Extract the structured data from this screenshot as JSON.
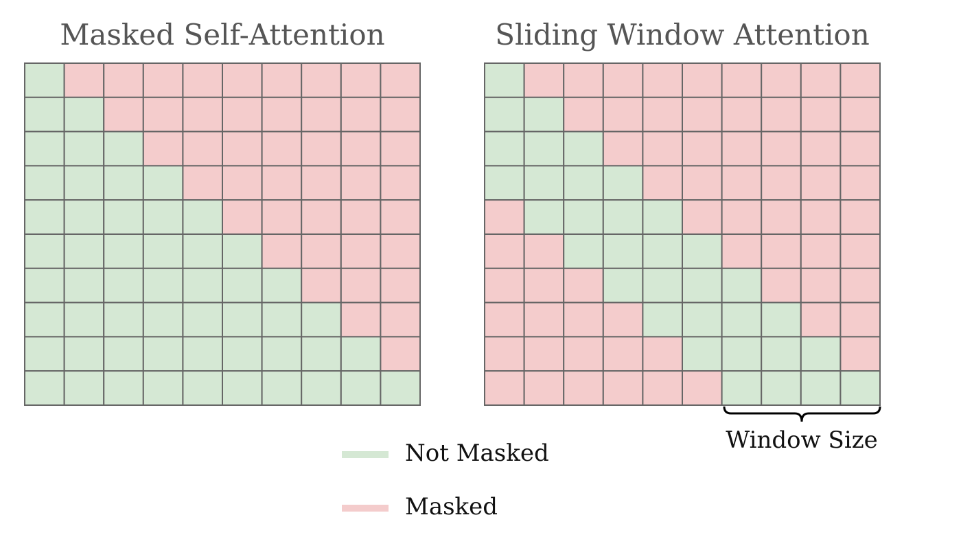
{
  "panels": [
    {
      "title": "Masked Self-Attention",
      "kind": "causal"
    },
    {
      "title": "Sliding Window Attention",
      "kind": "sliding"
    }
  ],
  "annotation": "Window Size",
  "legend": [
    {
      "label": "Not Masked",
      "color": "#d5e8d4"
    },
    {
      "label": "Masked",
      "color": "#f4cccc"
    }
  ]
}
